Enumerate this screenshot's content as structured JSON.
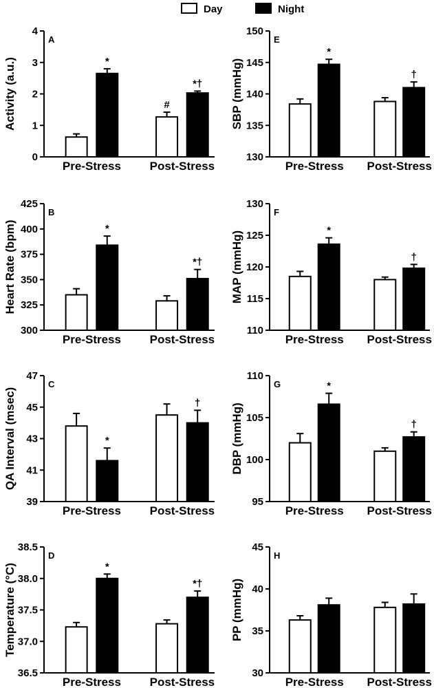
{
  "legend": {
    "day_label": "Day",
    "night_label": "Night",
    "day_color": "#ffffff",
    "night_color": "#000000"
  },
  "chart_data": [
    {
      "type": "bar",
      "panel": "A",
      "ylabel": "Activity (a.u.)",
      "categories": [
        "Pre-Stress",
        "Post-Stress"
      ],
      "ylim": [
        0,
        4
      ],
      "yticks": [
        "0",
        "1",
        "2",
        "3",
        "4"
      ],
      "series": [
        {
          "name": "Day",
          "values": [
            0.63,
            1.27
          ],
          "errors": [
            0.1,
            0.15
          ],
          "annotations": [
            "",
            "#"
          ]
        },
        {
          "name": "Night",
          "values": [
            2.65,
            2.03
          ],
          "errors": [
            0.15,
            0.06
          ],
          "annotations": [
            "*",
            "*†"
          ]
        }
      ]
    },
    {
      "type": "bar",
      "panel": "E",
      "ylabel": "SBP (mmHg)",
      "categories": [
        "Pre-Stress",
        "Post-Stress"
      ],
      "ylim": [
        130,
        150
      ],
      "yticks": [
        "130",
        "135",
        "140",
        "145",
        "150"
      ],
      "series": [
        {
          "name": "Day",
          "values": [
            138.4,
            138.8
          ],
          "errors": [
            0.8,
            0.6
          ],
          "annotations": [
            "",
            ""
          ]
        },
        {
          "name": "Night",
          "values": [
            144.7,
            141.0
          ],
          "errors": [
            0.8,
            0.9
          ],
          "annotations": [
            "*",
            "†"
          ]
        }
      ]
    },
    {
      "type": "bar",
      "panel": "B",
      "ylabel": "Heart Rate (bpm)",
      "categories": [
        "Pre-Stress",
        "Post-Stress"
      ],
      "ylim": [
        300,
        425
      ],
      "yticks": [
        "300",
        "325",
        "350",
        "375",
        "400",
        "425"
      ],
      "series": [
        {
          "name": "Day",
          "values": [
            335,
            329
          ],
          "errors": [
            6,
            5
          ],
          "annotations": [
            "",
            ""
          ]
        },
        {
          "name": "Night",
          "values": [
            384,
            351
          ],
          "errors": [
            9,
            9
          ],
          "annotations": [
            "*",
            "*†"
          ]
        }
      ]
    },
    {
      "type": "bar",
      "panel": "F",
      "ylabel": "MAP (mmHg)",
      "categories": [
        "Pre-Stress",
        "Post-Stress"
      ],
      "ylim": [
        110,
        130
      ],
      "yticks": [
        "110",
        "115",
        "120",
        "125",
        "130"
      ],
      "series": [
        {
          "name": "Day",
          "values": [
            118.5,
            118.0
          ],
          "errors": [
            0.8,
            0.4
          ],
          "annotations": [
            "",
            ""
          ]
        },
        {
          "name": "Night",
          "values": [
            123.6,
            119.8
          ],
          "errors": [
            1.0,
            0.6
          ],
          "annotations": [
            "*",
            "†"
          ]
        }
      ]
    },
    {
      "type": "bar",
      "panel": "C",
      "ylabel": "QA Interval (msec)",
      "categories": [
        "Pre-Stress",
        "Post-Stress"
      ],
      "ylim": [
        39,
        47
      ],
      "yticks": [
        "39",
        "41",
        "43",
        "45",
        "47"
      ],
      "series": [
        {
          "name": "Day",
          "values": [
            43.8,
            44.5
          ],
          "errors": [
            0.8,
            0.7
          ],
          "annotations": [
            "",
            ""
          ]
        },
        {
          "name": "Night",
          "values": [
            41.6,
            44.0
          ],
          "errors": [
            0.8,
            0.8
          ],
          "annotations": [
            "*",
            "†"
          ]
        }
      ]
    },
    {
      "type": "bar",
      "panel": "G",
      "ylabel": "DBP (mmHg)",
      "categories": [
        "Pre-Stress",
        "Post-Stress"
      ],
      "ylim": [
        95,
        110
      ],
      "yticks": [
        "95",
        "100",
        "105",
        "110"
      ],
      "series": [
        {
          "name": "Day",
          "values": [
            102.0,
            101.0
          ],
          "errors": [
            1.1,
            0.4
          ],
          "annotations": [
            "",
            ""
          ]
        },
        {
          "name": "Night",
          "values": [
            106.6,
            102.7
          ],
          "errors": [
            1.3,
            0.6
          ],
          "annotations": [
            "*",
            "†"
          ]
        }
      ]
    },
    {
      "type": "bar",
      "panel": "D",
      "ylabel": "Temperature (°C)",
      "categories": [
        "Pre-Stress",
        "Post-Stress"
      ],
      "ylim": [
        36.5,
        38.5
      ],
      "yticks": [
        "36.5",
        "37.0",
        "37.5",
        "38.0",
        "38.5"
      ],
      "series": [
        {
          "name": "Day",
          "values": [
            37.23,
            37.28
          ],
          "errors": [
            0.07,
            0.06
          ],
          "annotations": [
            "",
            ""
          ]
        },
        {
          "name": "Night",
          "values": [
            38.0,
            37.7
          ],
          "errors": [
            0.07,
            0.1
          ],
          "annotations": [
            "*",
            "*†"
          ]
        }
      ]
    },
    {
      "type": "bar",
      "panel": "H",
      "ylabel": "PP (mmHg)",
      "categories": [
        "Pre-Stress",
        "Post-Stress"
      ],
      "ylim": [
        30,
        45
      ],
      "yticks": [
        "30",
        "35",
        "40",
        "45"
      ],
      "series": [
        {
          "name": "Day",
          "values": [
            36.3,
            37.8
          ],
          "errors": [
            0.5,
            0.6
          ],
          "annotations": [
            "",
            ""
          ]
        },
        {
          "name": "Night",
          "values": [
            38.1,
            38.2
          ],
          "errors": [
            0.8,
            1.2
          ],
          "annotations": [
            "",
            ""
          ]
        }
      ]
    }
  ]
}
